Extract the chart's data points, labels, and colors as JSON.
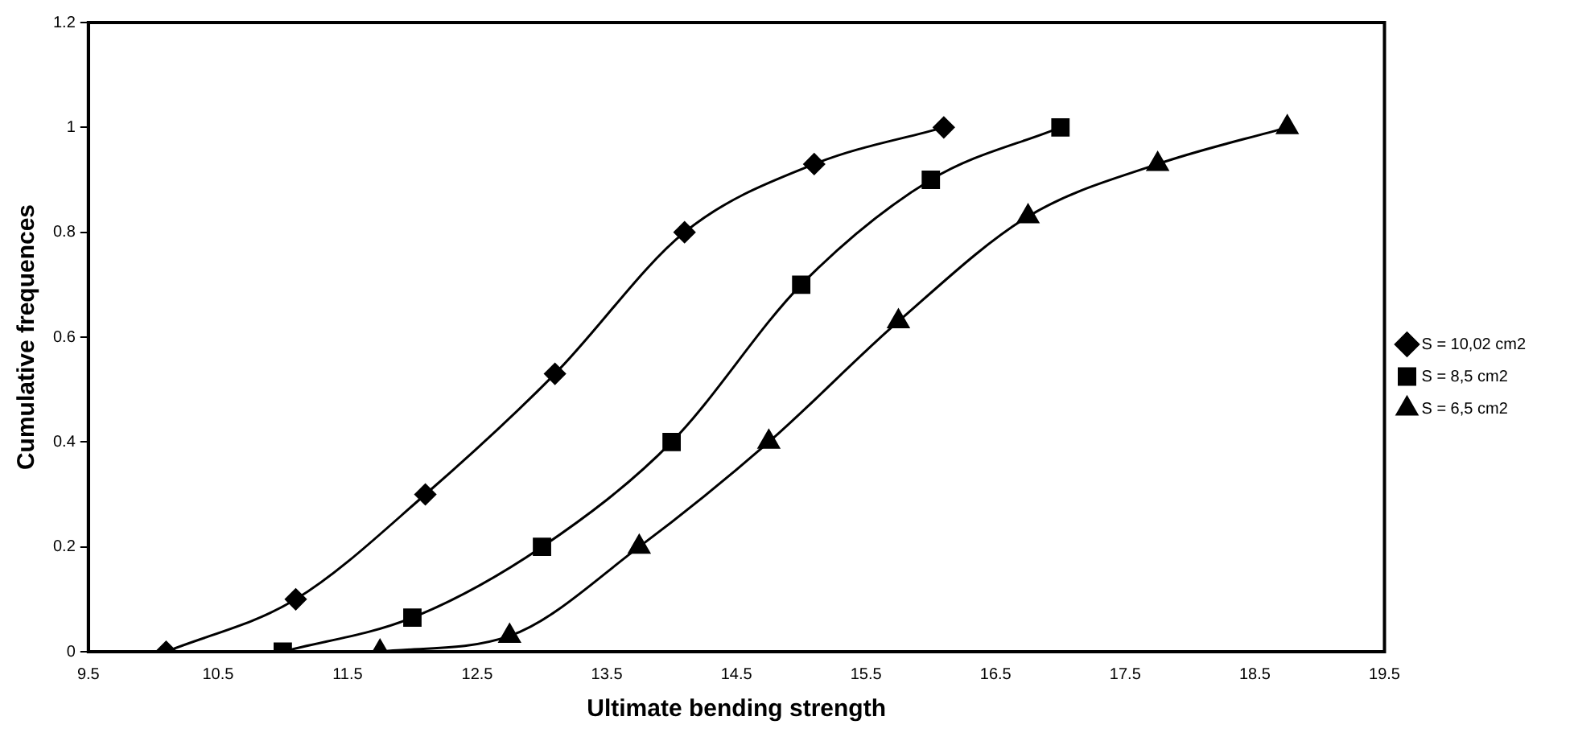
{
  "chart_data": {
    "type": "line",
    "xlabel": "Ultimate bending strength",
    "ylabel": "Cumulative frequences",
    "xlim": [
      9.5,
      19.5
    ],
    "xticks": [
      9.5,
      10.5,
      11.5,
      12.5,
      13.5,
      14.5,
      15.5,
      16.5,
      17.5,
      18.5,
      19.5
    ],
    "ylim": [
      0,
      1.2
    ],
    "yticks": [
      0,
      0.2,
      0.4,
      0.6,
      0.8,
      1,
      1.2
    ],
    "grid": false,
    "legend": "right",
    "line_style": "solid",
    "series": [
      {
        "name": "S = 10,02 cm2",
        "color": "#000000",
        "marker": "diamond",
        "x": [
          10.1,
          11.1,
          12.1,
          13.1,
          14.1,
          15.1,
          16.1
        ],
        "values": [
          0,
          0.1,
          0.3,
          0.53,
          0.8,
          0.93,
          1
        ]
      },
      {
        "name": "S = 8,5 cm2",
        "color": "#000000",
        "marker": "square",
        "x": [
          11,
          12,
          13,
          14,
          15,
          16,
          17
        ],
        "values": [
          0,
          0.065,
          0.2,
          0.4,
          0.7,
          0.9,
          1
        ]
      },
      {
        "name": "S = 6,5 cm2",
        "color": "#000000",
        "marker": "triangle",
        "x": [
          11.75,
          12.75,
          13.75,
          14.75,
          15.75,
          16.75,
          17.75,
          18.75
        ],
        "values": [
          0,
          0.03,
          0.2,
          0.4,
          0.63,
          0.83,
          0.93,
          1
        ]
      }
    ]
  }
}
